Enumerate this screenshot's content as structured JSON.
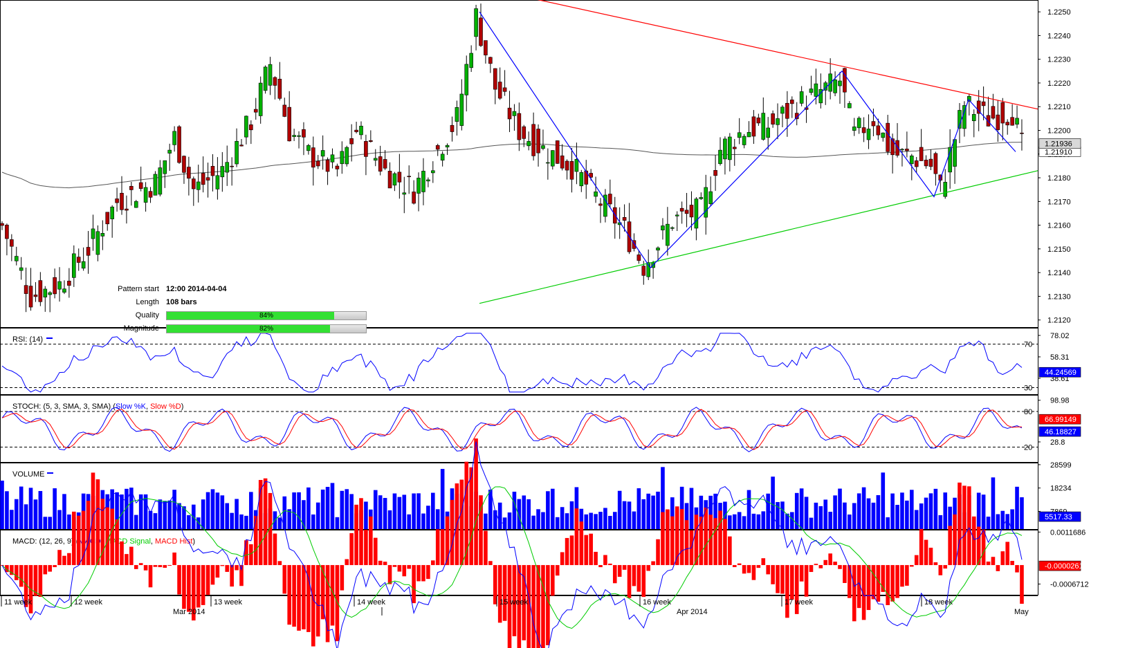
{
  "chart_data": [
    {
      "type": "candlestick",
      "title": "",
      "price_ticks": [
        "1.2250",
        "1.2240",
        "1.2230",
        "1.2220",
        "1.2210",
        "1.2200",
        "1.2190",
        "1.2180",
        "1.2170",
        "1.2160",
        "1.2150",
        "1.2140",
        "1.2130",
        "1.2120"
      ],
      "ylim": [
        1.2117,
        1.2255
      ],
      "last_price": "1.21936",
      "ma_label": "1.21910",
      "x_labels_top": [
        "11 week",
        "12 week",
        "13 week",
        "14 week",
        "15 week",
        "16 week",
        "17 week",
        "18 week"
      ],
      "x_labels_bottom": [
        "Mar 2014",
        "Apr 2014",
        "May"
      ],
      "pattern": {
        "start_label": "Pattern start",
        "start_value": "12:00 2014-04-04",
        "length_label": "Length",
        "length_value": "108 bars",
        "quality_label": "Quality",
        "quality_value": "84%",
        "quality": 0.84,
        "magnitude_label": "Magnitude",
        "magnitude_value": "82%",
        "magnitude": 0.82
      },
      "resistance_line": {
        "color": "#ff0000",
        "from": 1.2257,
        "to": 1.2209
      },
      "support_line": {
        "color": "#00cc00",
        "from": 1.2127,
        "to": 1.2183
      },
      "zigzag": [
        1.225,
        1.2142,
        1.2225,
        1.2172,
        1.2213,
        1.2191
      ],
      "colors": {
        "up": "#00b000",
        "down": "#b00000",
        "ma": "#555555",
        "zigzag": "#0000ff"
      }
    },
    {
      "type": "line",
      "title": "RSI: (14)",
      "ticks": [
        "78.02",
        "58.31",
        "38.61"
      ],
      "levels": [
        70,
        30
      ],
      "level_labels": [
        "70",
        "30"
      ],
      "ylim": [
        24,
        85
      ],
      "current": "44.24569",
      "series": [
        {
          "name": "RSI",
          "color": "#0000ff"
        }
      ]
    },
    {
      "type": "line",
      "title": "STOCH: (5, 3, SMA, 3, SMA)",
      "series_labels": [
        "Slow %K",
        "Slow %D"
      ],
      "ticks": [
        "98.98",
        "28.8"
      ],
      "levels": [
        80,
        20
      ],
      "level_labels": [
        "80",
        "20"
      ],
      "ylim": [
        -5,
        108
      ],
      "current_k": "46.18827",
      "current_d": "66.99149",
      "series": [
        {
          "name": "Slow %K",
          "color": "#0000ff"
        },
        {
          "name": "Slow %D",
          "color": "#ff0000"
        }
      ]
    },
    {
      "type": "bar",
      "title": "VOLUME",
      "ticks": [
        "28599",
        "18234",
        "7869"
      ],
      "ylim": [
        0,
        29500
      ],
      "current": "5517.33",
      "color": "#0000ff"
    },
    {
      "type": "line",
      "title": "MACD: (12, 26, 9)",
      "series_labels": [
        "MACD",
        "MACD Signal",
        "MACD Hist"
      ],
      "ticks": [
        "0.0011686",
        "-0.0006712"
      ],
      "current_hist": "-0.0000261",
      "ylim": [
        -0.00105,
        0.00125
      ],
      "series": [
        {
          "name": "MACD",
          "color": "#0000ff"
        },
        {
          "name": "MACD Signal",
          "color": "#00cc00"
        },
        {
          "name": "MACD Hist",
          "color": "#ff0000"
        }
      ]
    }
  ]
}
